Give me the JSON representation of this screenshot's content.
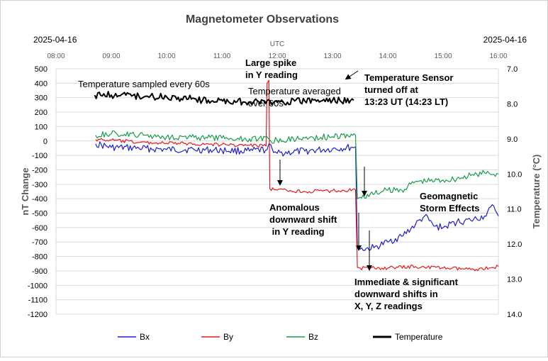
{
  "chart_data": {
    "type": "line",
    "title": "Magnetometer Observations",
    "date_left": "2025-04-16",
    "date_right": "2025-04-16",
    "x_top_label": "UTC",
    "xlabel": "",
    "ylabel": "nT Change",
    "y2label": "Temperature (°C)",
    "x_ticks": [
      "08:00",
      "09:00",
      "10:00",
      "11:00",
      "12:00",
      "13:00",
      "14:00",
      "15:00",
      "16:00"
    ],
    "xlim": [
      "08:00",
      "16:00"
    ],
    "ylim": [
      -1200,
      500
    ],
    "y_ticks": [
      500,
      400,
      300,
      200,
      100,
      0,
      -100,
      -200,
      -300,
      -400,
      -500,
      -600,
      -700,
      -800,
      -900,
      -1000,
      -1100,
      -1200
    ],
    "y2lim": [
      7.0,
      14.0
    ],
    "y2_inverted": true,
    "y2_ticks": [
      "7.0",
      "8.0",
      "9.0",
      "10.0",
      "11.0",
      "12.0",
      "13.0",
      "14.0"
    ],
    "grid": "horizontal",
    "legend_position": "bottom",
    "series": [
      {
        "name": "Bx",
        "color": "#1f1fc8",
        "points": [
          [
            "08:43",
            -20
          ],
          [
            "09:00",
            -45
          ],
          [
            "09:30",
            -50
          ],
          [
            "10:00",
            -60
          ],
          [
            "10:30",
            -60
          ],
          [
            "11:00",
            -65
          ],
          [
            "11:30",
            -70
          ],
          [
            "11:49",
            -60
          ],
          [
            "11:53",
            -25
          ],
          [
            "11:56",
            -80
          ],
          [
            "12:00",
            -85
          ],
          [
            "12:30",
            -70
          ],
          [
            "13:00",
            -55
          ],
          [
            "13:20",
            -45
          ],
          [
            "13:25",
            -40
          ],
          [
            "13:27",
            -740
          ],
          [
            "13:30",
            -750
          ],
          [
            "13:45",
            -740
          ],
          [
            "14:00",
            -700
          ],
          [
            "14:15",
            -660
          ],
          [
            "14:30",
            -580
          ],
          [
            "14:40",
            -520
          ],
          [
            "14:50",
            -590
          ],
          [
            "15:00",
            -600
          ],
          [
            "15:15",
            -560
          ],
          [
            "15:30",
            -550
          ],
          [
            "15:45",
            -520
          ],
          [
            "15:55",
            -450
          ],
          [
            "16:00",
            -520
          ]
        ]
      },
      {
        "name": "By",
        "color": "#e31a1c",
        "points": [
          [
            "08:43",
            10
          ],
          [
            "09:00",
            5
          ],
          [
            "09:30",
            -10
          ],
          [
            "10:00",
            -15
          ],
          [
            "10:30",
            -20
          ],
          [
            "11:00",
            -25
          ],
          [
            "11:30",
            -30
          ],
          [
            "11:48",
            -35
          ],
          [
            "11:49",
            400
          ],
          [
            "11:51",
            420
          ],
          [
            "11:52",
            -330
          ],
          [
            "12:00",
            -340
          ],
          [
            "12:30",
            -350
          ],
          [
            "13:00",
            -345
          ],
          [
            "13:25",
            -340
          ],
          [
            "13:27",
            -875
          ],
          [
            "13:30",
            -880
          ],
          [
            "14:00",
            -880
          ],
          [
            "14:30",
            -870
          ],
          [
            "15:00",
            -880
          ],
          [
            "15:30",
            -890
          ],
          [
            "15:50",
            -880
          ],
          [
            "16:00",
            -870
          ]
        ]
      },
      {
        "name": "Bz",
        "color": "#1a9c4a",
        "points": [
          [
            "08:43",
            40
          ],
          [
            "09:00",
            50
          ],
          [
            "09:30",
            40
          ],
          [
            "10:00",
            30
          ],
          [
            "10:30",
            25
          ],
          [
            "11:00",
            20
          ],
          [
            "11:30",
            15
          ],
          [
            "11:50",
            20
          ],
          [
            "11:53",
            0
          ],
          [
            "12:00",
            5
          ],
          [
            "12:30",
            20
          ],
          [
            "13:00",
            30
          ],
          [
            "13:25",
            40
          ],
          [
            "13:27",
            -400
          ],
          [
            "13:30",
            -390
          ],
          [
            "14:00",
            -340
          ],
          [
            "14:15",
            -340
          ],
          [
            "14:30",
            -280
          ],
          [
            "15:00",
            -270
          ],
          [
            "15:15",
            -260
          ],
          [
            "15:30",
            -240
          ],
          [
            "15:45",
            -220
          ],
          [
            "16:00",
            -230
          ]
        ]
      },
      {
        "name": "Temperature",
        "color": "#000000",
        "axis": "right",
        "points": [
          [
            "08:42",
            7.75
          ],
          [
            "09:00",
            7.75
          ],
          [
            "09:30",
            7.78
          ],
          [
            "10:00",
            7.8
          ],
          [
            "10:30",
            7.85
          ],
          [
            "10:39",
            7.9
          ],
          [
            "11:29",
            7.95
          ],
          [
            "12:00",
            7.95
          ],
          [
            "12:30",
            7.92
          ],
          [
            "13:00",
            7.9
          ],
          [
            "13:23",
            7.9
          ]
        ]
      }
    ],
    "annotations": [
      "Temperature sampled every 60s",
      "Large spike\nin Y reading",
      "Temperature averaged\nover 60s",
      "Temperature Sensor\nturned off at\n13:23 UT (14:23 LT)",
      "Anomalous\ndownward shift\n in Y reading",
      "Geomagnetic\nStorm Effects",
      "Immediate & significant\ndownward shifts in\nX, Y, Z readings"
    ]
  }
}
